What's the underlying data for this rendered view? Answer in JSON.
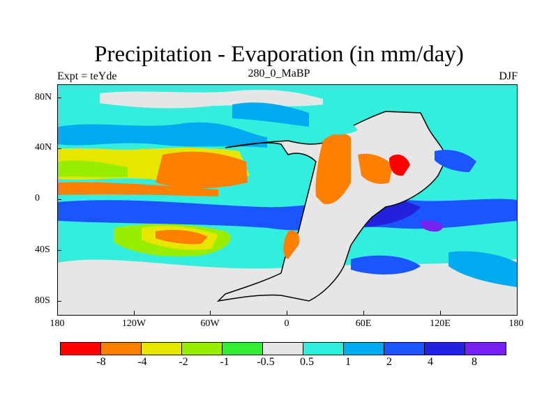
{
  "map": {
    "title": "Precipitation - Evaporation (in mm/day)",
    "experiment": "Expt = teYde",
    "period": "280_0_MaBP",
    "season": "DJF",
    "lat_ticks": [
      "80N",
      "40N",
      "0",
      "40S",
      "80S"
    ],
    "lon_ticks": [
      "180",
      "120W",
      "60W",
      "0",
      "60E",
      "120E",
      "180"
    ]
  },
  "colorbar": {
    "colors": [
      "#ff0000",
      "#ff8000",
      "#e6e600",
      "#99ee00",
      "#33ee33",
      "#e6e6e6",
      "#33eedd",
      "#00aaee",
      "#1a55ff",
      "#2222dd",
      "#7722ee"
    ],
    "labels": [
      "-8",
      "-4",
      "-2",
      "-1",
      "-0.5",
      "0.5",
      "1",
      "2",
      "4",
      "8"
    ]
  }
}
